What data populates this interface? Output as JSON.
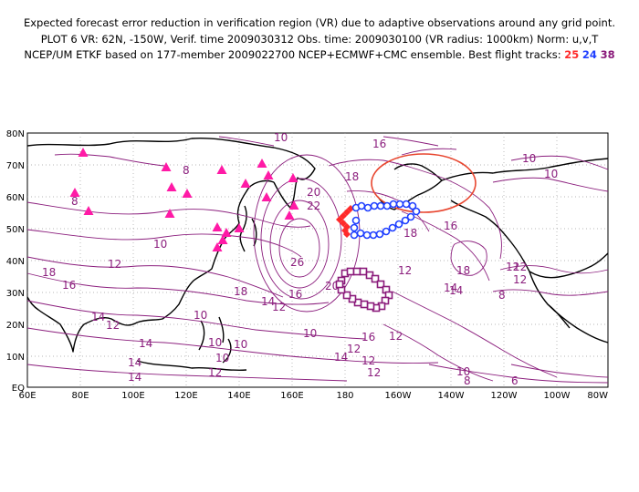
{
  "header": {
    "line1": "Expected forecast error reduction in verification region (VR) due to adaptive observations around any grid point.",
    "line2": "PLOT 6 VR: 62N, -150W, Verif. time 2009030312 Obs. time: 2009030100 (VR radius: 1000km) Norm: u,v,T",
    "line3_prefix": "NCEP/UM ETKF based on 177-member 2009022700 NCEP+ECMWF+CMC ensemble. Best flight tracks:",
    "tracks": [
      {
        "label": "25",
        "color": "#ff2a2a"
      },
      {
        "label": "24",
        "color": "#1f3fff"
      },
      {
        "label": "38",
        "color": "#8a1a7a"
      }
    ]
  },
  "map": {
    "lat_labels": [
      "80N",
      "70N",
      "60N",
      "50N",
      "40N",
      "30N",
      "20N",
      "10N",
      "EQ"
    ],
    "lon_labels": [
      "60E",
      "80E",
      "100E",
      "120E",
      "140E",
      "160E",
      "180",
      "160W",
      "140W",
      "120W",
      "100W",
      "80W"
    ],
    "contour_color": "#8b1e7d",
    "contour_labels": [
      {
        "text": "10"
      },
      {
        "text": "16"
      },
      {
        "text": "10"
      },
      {
        "text": "10"
      },
      {
        "text": "8"
      },
      {
        "text": "8"
      },
      {
        "text": "18"
      },
      {
        "text": "20"
      },
      {
        "text": "22"
      },
      {
        "text": "26"
      },
      {
        "text": "18"
      },
      {
        "text": "16"
      },
      {
        "text": "10"
      },
      {
        "text": "12"
      },
      {
        "text": "18"
      },
      {
        "text": "16"
      },
      {
        "text": "12"
      },
      {
        "text": "14"
      },
      {
        "text": "12"
      },
      {
        "text": "18"
      },
      {
        "text": "16"
      },
      {
        "text": "14"
      },
      {
        "text": "12"
      },
      {
        "text": "10"
      },
      {
        "text": "20"
      },
      {
        "text": "12"
      },
      {
        "text": "18"
      },
      {
        "text": "14"
      },
      {
        "text": "12"
      },
      {
        "text": "12"
      },
      {
        "text": "10"
      },
      {
        "text": "8"
      },
      {
        "text": "14"
      },
      {
        "text": "12"
      },
      {
        "text": "10"
      },
      {
        "text": "14"
      },
      {
        "text": "12"
      },
      {
        "text": "10"
      },
      {
        "text": "16"
      },
      {
        "text": "12"
      },
      {
        "text": "14"
      },
      {
        "text": "12"
      },
      {
        "text": "10"
      },
      {
        "text": "8"
      },
      {
        "text": "6"
      },
      {
        "text": "12"
      },
      {
        "text": "14"
      },
      {
        "text": "10"
      },
      {
        "text": "14"
      }
    ],
    "raob_marker_color": "#ff1aa6",
    "vr_circle_color": "#e8452e"
  }
}
